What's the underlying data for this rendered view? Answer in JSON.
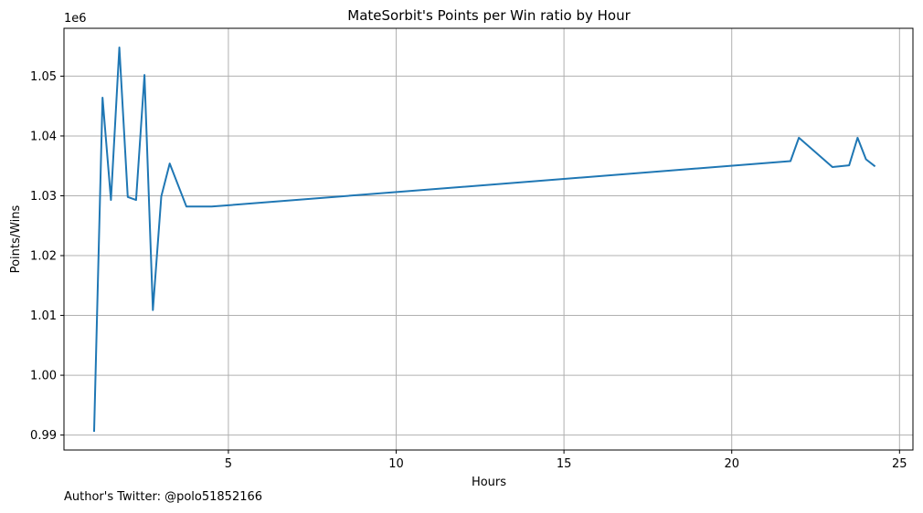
{
  "chart_data": {
    "type": "line",
    "title": "MateSorbit's Points per Win ratio by Hour",
    "xlabel": "Hours",
    "ylabel": "Points/Wins",
    "y_offset_label": "1e6",
    "xlim": [
      0.1,
      25.4
    ],
    "ylim": [
      0.9875,
      1.058
    ],
    "x_ticks": [
      5,
      10,
      15,
      20,
      25
    ],
    "y_ticks": [
      0.99,
      1.0,
      1.01,
      1.02,
      1.03,
      1.04,
      1.05
    ],
    "y_tick_labels": [
      "0.99",
      "1.00",
      "1.01",
      "1.02",
      "1.03",
      "1.04",
      "1.05"
    ],
    "grid": true,
    "line_color": "#1f77b4",
    "series": [
      {
        "x": [
          1.0,
          1.25,
          1.5,
          1.75,
          2.0,
          2.25,
          2.5,
          2.75,
          3.0,
          3.25,
          3.75,
          4.0,
          4.5,
          21.75,
          22.0,
          23.0,
          23.5,
          23.75,
          24.0,
          24.25
        ],
        "y": [
          0.9907,
          1.0464,
          1.0293,
          1.0548,
          1.0298,
          1.0293,
          1.0502,
          1.0109,
          1.0299,
          1.0354,
          1.0282,
          1.0282,
          1.0282,
          1.0358,
          1.0397,
          1.0348,
          1.0351,
          1.0397,
          1.0361,
          1.035
        ]
      }
    ]
  },
  "footer": {
    "author": "Author's Twitter: @polo51852166"
  }
}
